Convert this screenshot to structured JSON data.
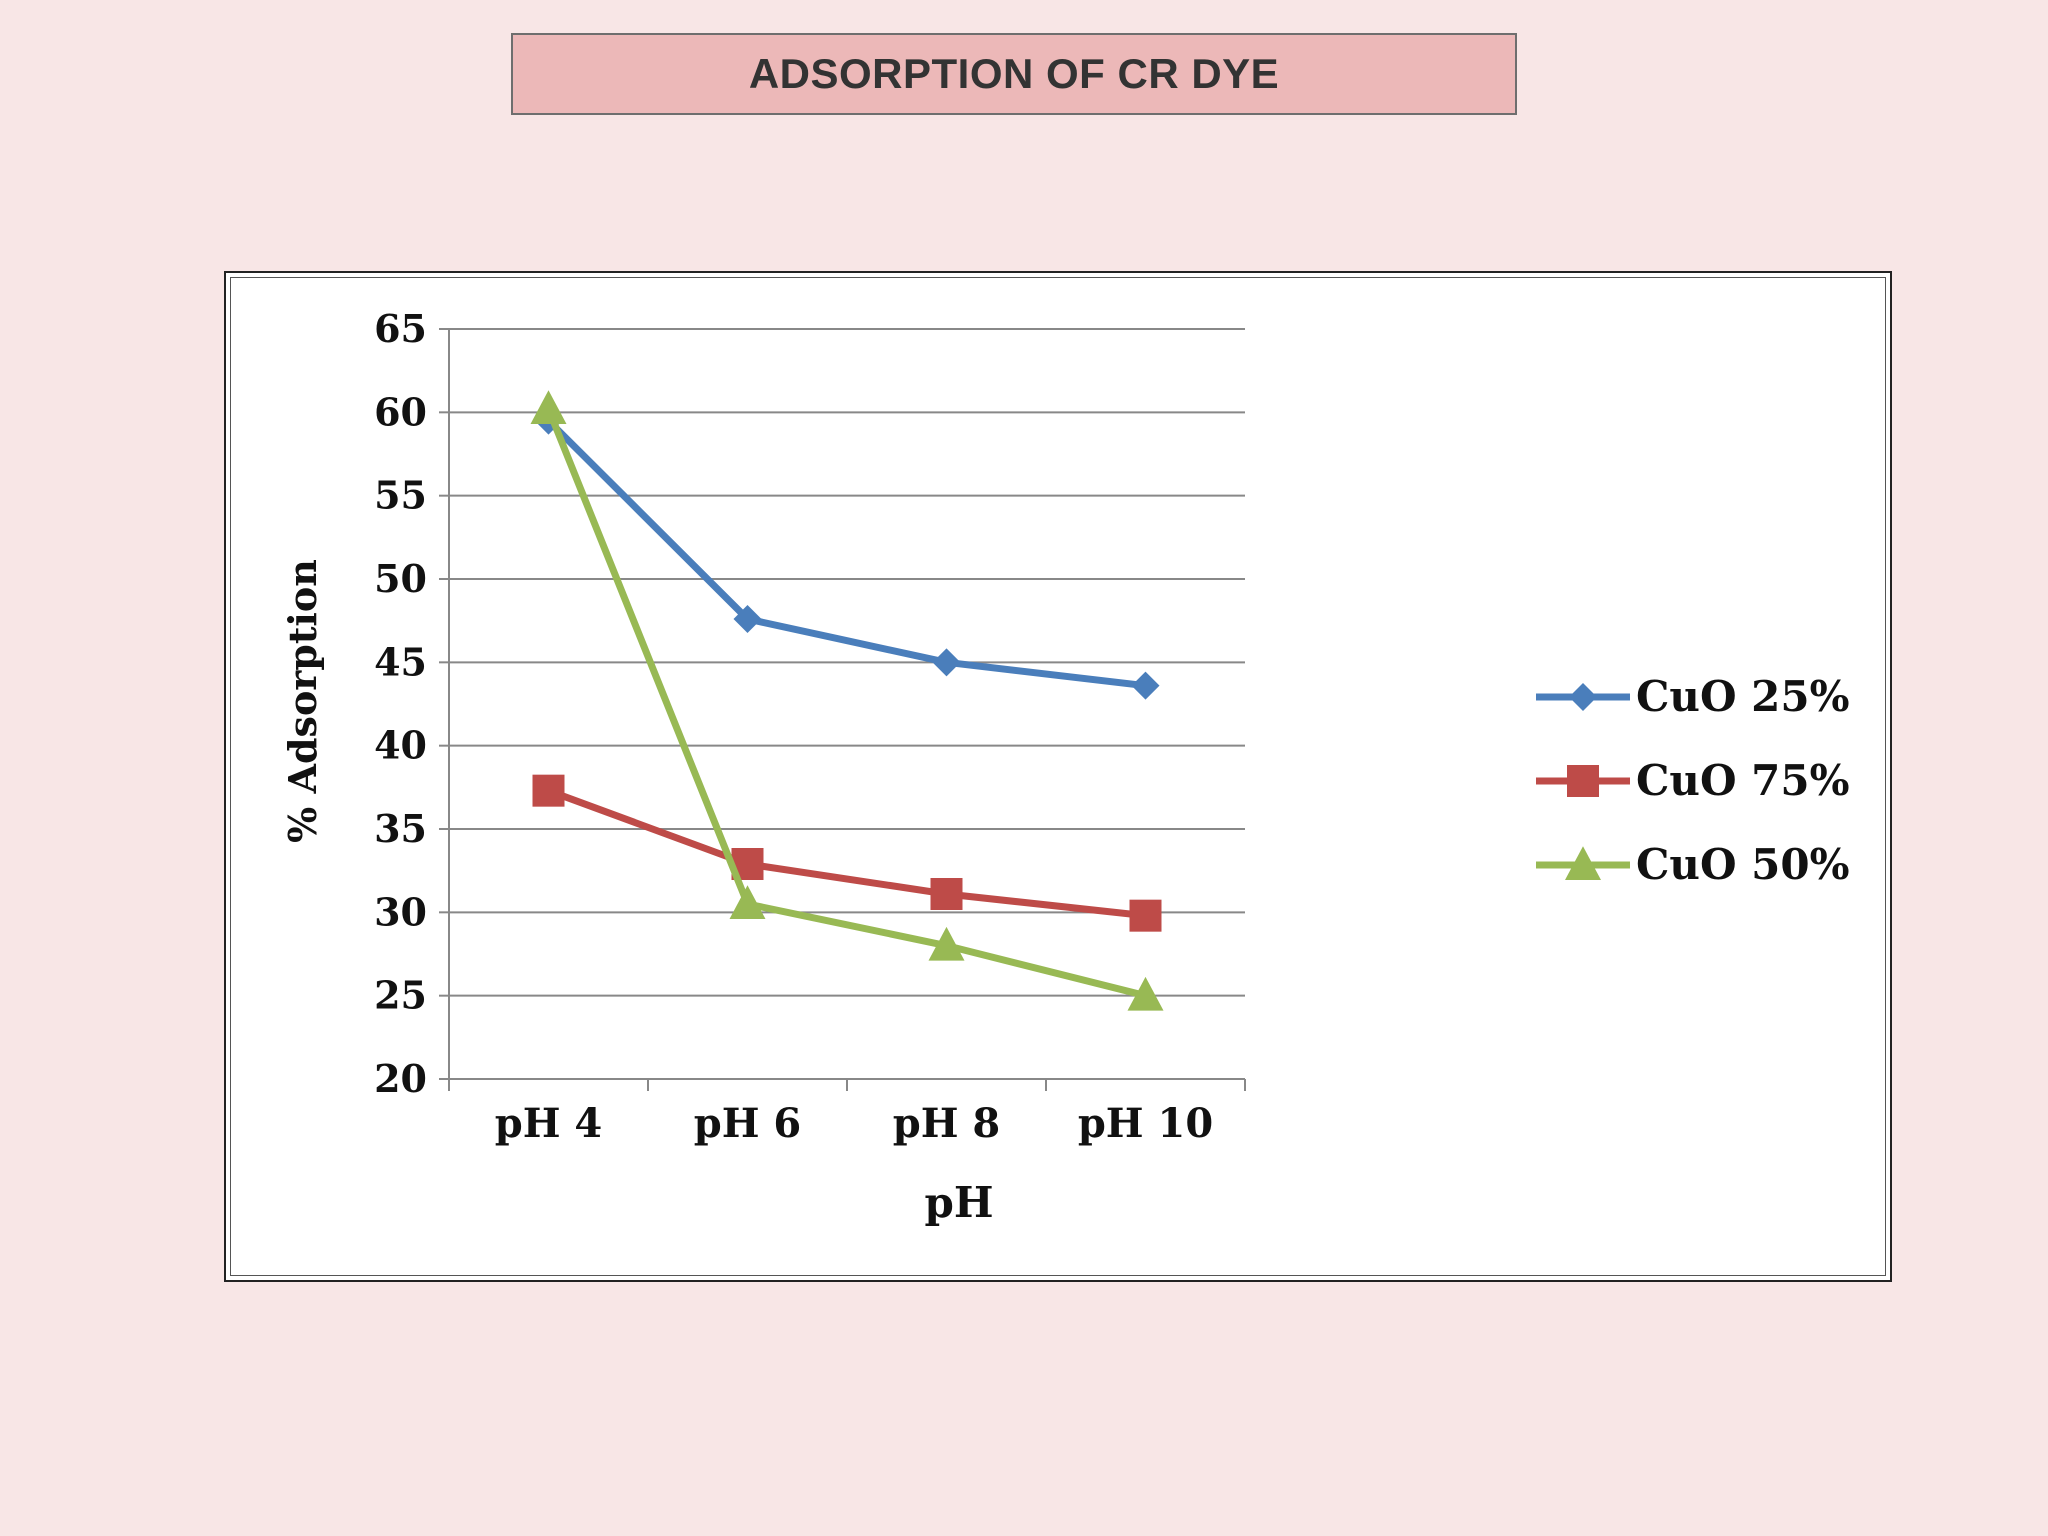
{
  "slide": {
    "title": "ADSORPTION OF CR DYE"
  },
  "colors": {
    "background": "#f8e6e6",
    "title_fill": "#ecb8b8",
    "grid": "#888888"
  },
  "chart_data": {
    "type": "line",
    "title": "",
    "xlabel": "pH",
    "ylabel": "% Adsorption",
    "categories": [
      "pH 4",
      "pH 6",
      "pH 8",
      "pH 10"
    ],
    "ylim": [
      20,
      65
    ],
    "ytick_step": 5,
    "grid": true,
    "legend_position": "right",
    "series": [
      {
        "name": "CuO 25%",
        "color": "#4a7ebb",
        "marker": "diamond",
        "values": [
          59.5,
          47.6,
          45.0,
          43.6
        ]
      },
      {
        "name": "CuO 75%",
        "color": "#be4b48",
        "marker": "square",
        "values": [
          37.3,
          32.9,
          31.1,
          29.8
        ]
      },
      {
        "name": "CuO 50%",
        "color": "#98b954",
        "marker": "triangle",
        "values": [
          60.2,
          30.5,
          28.0,
          25.0
        ]
      }
    ]
  }
}
